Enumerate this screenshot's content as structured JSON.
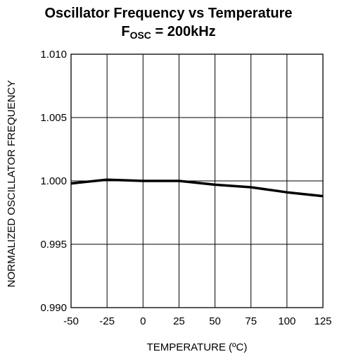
{
  "title": {
    "line1": "Oscillator Frequency vs Temperature",
    "line2_main": "F",
    "line2_sub": "OSC",
    "line2_rest": " = 200kHz"
  },
  "chart_data": {
    "type": "line",
    "title": "Oscillator Frequency vs Temperature",
    "subtitle": "FOSC = 200kHz",
    "xlabel": "TEMPERATURE (ºC)",
    "ylabel": "NORMALIZED OSCILLATOR FREQUENCY",
    "xlim": [
      -50,
      125
    ],
    "ylim": [
      0.99,
      1.01
    ],
    "x_ticks": [
      "-50",
      "-25",
      "0",
      "25",
      "50",
      "75",
      "100",
      "125"
    ],
    "y_ticks": [
      "1.010",
      "1.005",
      "1.000",
      "0.995",
      "0.990"
    ],
    "grid": true,
    "series": [
      {
        "x": [
          -50,
          -25,
          0,
          25,
          50,
          75,
          100,
          125
        ],
        "y": [
          0.9998,
          1.0001,
          1.0,
          1.0,
          0.9997,
          0.9995,
          0.9991,
          0.9988
        ]
      }
    ]
  },
  "colors": {
    "line": "#000000",
    "grid": "#000000",
    "background": "#ffffff"
  }
}
